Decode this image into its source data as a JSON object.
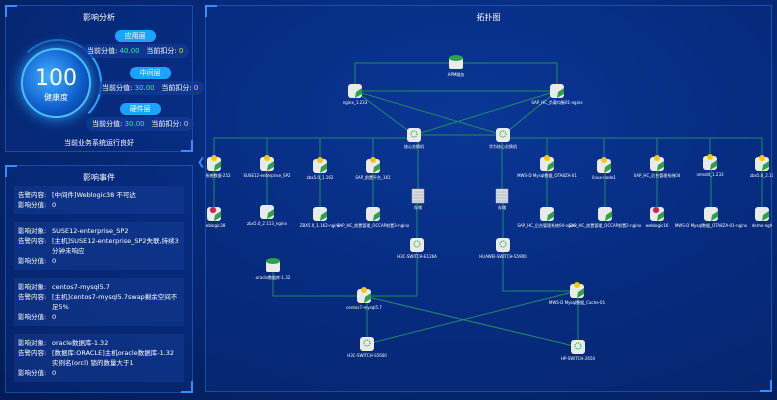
{
  "impact_analysis": {
    "title": "影响分析",
    "health_score": "100",
    "health_label": "健康度",
    "layers": [
      {
        "name": "应用层",
        "score_label": "当前分值:",
        "score": "40.00",
        "deduct_label": "当前扣分:",
        "deduct": "0"
      },
      {
        "name": "中间层",
        "score_label": "当前分值:",
        "score": "30.00",
        "deduct_label": "当前扣分:",
        "deduct": "0"
      },
      {
        "name": "硬件层",
        "score_label": "当前分值:",
        "score": "30.00",
        "deduct_label": "当前扣分:",
        "deduct": "0"
      }
    ],
    "status": "当前业务系统运行良好"
  },
  "impact_events": {
    "title": "影响事件",
    "events": [
      {
        "rows": [
          {
            "k": "告警内容:",
            "v": "[中间件]Weblogic38 不可达"
          },
          {
            "k": "影响分值:",
            "v": "0"
          }
        ]
      },
      {
        "rows": [
          {
            "k": "影响对象:",
            "v": "SUSE12-enterprise_SP2"
          },
          {
            "k": "告警内容:",
            "v": "[主机]SUSE12-enterprise_SP2失联,持续3分钟未响应"
          },
          {
            "k": "影响分值:",
            "v": "0"
          }
        ]
      },
      {
        "rows": [
          {
            "k": "影响对象:",
            "v": "centos7-mysql5.7"
          },
          {
            "k": "告警内容:",
            "v": "[主机]centos7-mysql5.7swap剩余空间不足5%"
          },
          {
            "k": "影响分值:",
            "v": "0"
          }
        ]
      },
      {
        "rows": [
          {
            "k": "影响对象:",
            "v": "oracle数据库-1.32"
          },
          {
            "k": "告警内容:",
            "v": "[数据库:ORACLE]主机oracle数据库-1.32实例名(orcl) 锁的数量大于1"
          },
          {
            "k": "影响分值:",
            "v": "0"
          }
        ]
      }
    ]
  },
  "topology": {
    "title": "拓扑图",
    "colors": {
      "link": "#1f8a6a",
      "ok": "#2ea04a",
      "warning": "#f5c518",
      "critical": "#d0243a"
    },
    "nodes": [
      {
        "id": "apm",
        "label": "APM服务",
        "type": "db",
        "status": "ok"
      },
      {
        "id": "ng233",
        "label": "nginx_1.233",
        "type": "server",
        "status": "ok"
      },
      {
        "id": "sapng",
        "label": "SAP_HC_负载均衡01-nginx",
        "type": "server",
        "status": "ok"
      },
      {
        "id": "sw1",
        "label": "核心交换机",
        "type": "switch",
        "status": "ok"
      },
      {
        "id": "sw2",
        "label": "华为核心交换机",
        "type": "switch",
        "status": "ok"
      },
      {
        "id": "a1",
        "label": "操作系统数据-252",
        "type": "server",
        "status": "warning"
      },
      {
        "id": "a2",
        "label": "SUSE12-enterprise_SP2",
        "type": "server",
        "status": "warning"
      },
      {
        "id": "a3",
        "label": "zbx5.0_1.162",
        "type": "server",
        "status": "warning"
      },
      {
        "id": "a4",
        "label": "SAP_前置平台_161",
        "type": "server",
        "status": "warning"
      },
      {
        "id": "a5",
        "label": "MWS-D Mysql数据_OTA8ZA-01",
        "type": "server",
        "status": "warning"
      },
      {
        "id": "a6",
        "label": "linux-node1",
        "type": "server",
        "status": "warning"
      },
      {
        "id": "a7",
        "label": "SAP_HC_后台管理系统04",
        "type": "server",
        "status": "warning"
      },
      {
        "id": "a8",
        "label": "nmsdd_1.233",
        "type": "server",
        "status": "warning"
      },
      {
        "id": "a9",
        "label": "zbx5.0_2.11",
        "type": "server",
        "status": "warning"
      },
      {
        "id": "st1",
        "label": "存储",
        "type": "storage",
        "status": "ok"
      },
      {
        "id": "st2",
        "label": "存储",
        "type": "storage",
        "status": "ok"
      },
      {
        "id": "b1",
        "label": "weblogic38",
        "type": "server",
        "status": "critical"
      },
      {
        "id": "b2",
        "label": "zbx5.0_2.113_nginx",
        "type": "server",
        "status": "ok"
      },
      {
        "id": "b3",
        "label": "ZBX5.0_1.162-nginx",
        "type": "server",
        "status": "ok"
      },
      {
        "id": "b4",
        "label": "SAP_HC_前置管理_OCCAP前置3-nginx",
        "type": "server",
        "status": "ok"
      },
      {
        "id": "b5",
        "label": "SAP_HC_后台管理系统04-nginx",
        "type": "server",
        "status": "ok"
      },
      {
        "id": "b6",
        "label": "SAP_HC_前置管理_OCCAP前置2-nginx",
        "type": "server",
        "status": "ok"
      },
      {
        "id": "b7",
        "label": "weblogic16",
        "type": "server",
        "status": "critical"
      },
      {
        "id": "b8",
        "label": "MWS-D Mysql数据_OTA8ZA-01-nginx",
        "type": "server",
        "status": "ok"
      },
      {
        "id": "b9",
        "label": "demo-ngh",
        "type": "server",
        "status": "ok"
      },
      {
        "id": "h3c1",
        "label": "H3C-SWITCH-E126A",
        "type": "switch",
        "status": "ok"
      },
      {
        "id": "hw",
        "label": "HUAWEI-SWITCH-S5900",
        "type": "switch",
        "status": "ok"
      },
      {
        "id": "ora",
        "label": "oracle数据库-1.32",
        "type": "db",
        "status": "ok"
      },
      {
        "id": "cen",
        "label": "centos7-mysql5.7",
        "type": "server",
        "status": "warning"
      },
      {
        "id": "cache",
        "label": "MWS-D Mysql数据_Cache-01",
        "type": "server",
        "status": "warning"
      },
      {
        "id": "h3c2",
        "label": "H3C-SWITCH-S5600",
        "type": "switch",
        "status": "ok"
      },
      {
        "id": "hp",
        "label": "HP-SWITCH-2650",
        "type": "switch",
        "status": "ok"
      }
    ],
    "links": [
      [
        "apm",
        "ng233"
      ],
      [
        "apm",
        "sapng"
      ],
      [
        "ng233",
        "sw1"
      ],
      [
        "ng233",
        "sw2"
      ],
      [
        "sapng",
        "sw1"
      ],
      [
        "sapng",
        "sw2"
      ],
      [
        "ng233",
        "sapng"
      ],
      [
        "sw1",
        "a1"
      ],
      [
        "sw1",
        "a2"
      ],
      [
        "sw1",
        "a3"
      ],
      [
        "sw1",
        "a4"
      ],
      [
        "sw2",
        "a5"
      ],
      [
        "sw2",
        "a6"
      ],
      [
        "sw2",
        "a7"
      ],
      [
        "sw2",
        "a8"
      ],
      [
        "sw2",
        "a9"
      ],
      [
        "sw1",
        "sw2"
      ],
      [
        "a1",
        "b1"
      ],
      [
        "a2",
        "b2"
      ],
      [
        "a3",
        "b3"
      ],
      [
        "a4",
        "b4"
      ],
      [
        "a5",
        "b5"
      ],
      [
        "a6",
        "b6"
      ],
      [
        "a7",
        "b7"
      ],
      [
        "a8",
        "b8"
      ],
      [
        "a9",
        "b9"
      ],
      [
        "sw1",
        "st1"
      ],
      [
        "sw2",
        "st2"
      ],
      [
        "st1",
        "h3c1"
      ],
      [
        "st2",
        "hw"
      ],
      [
        "h3c1",
        "cen"
      ],
      [
        "hw",
        "cache"
      ],
      [
        "cen",
        "ora"
      ],
      [
        "cen",
        "h3c2"
      ],
      [
        "cen",
        "hp"
      ],
      [
        "cache",
        "h3c2"
      ],
      [
        "cache",
        "hp"
      ]
    ]
  }
}
